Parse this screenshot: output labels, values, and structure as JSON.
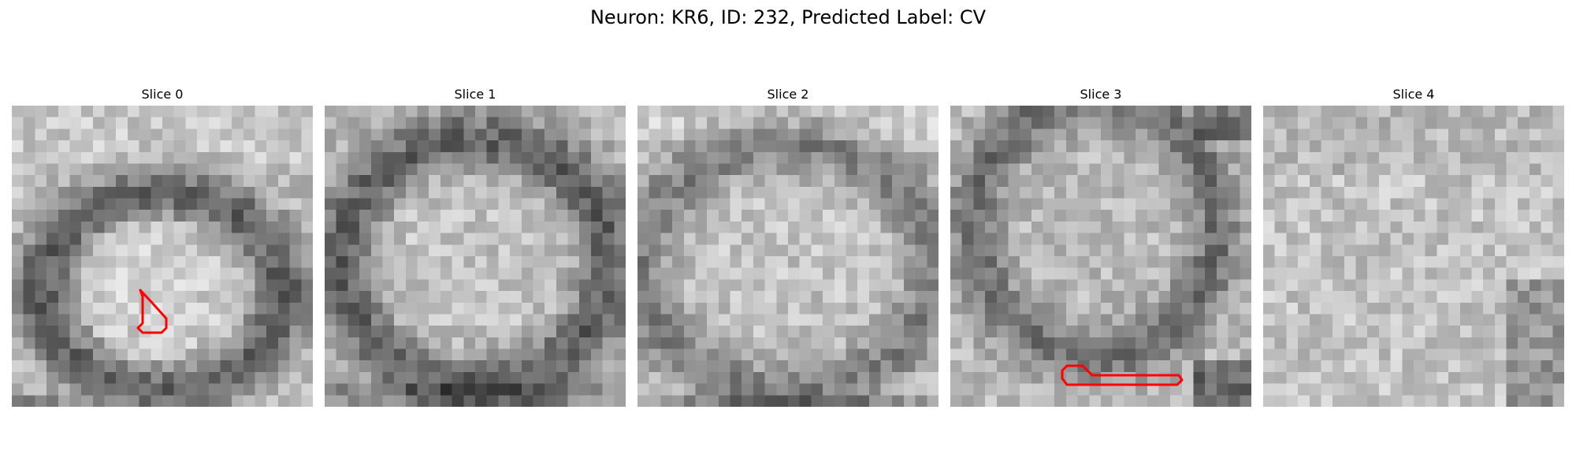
{
  "figure": {
    "title": "Neuron: KR6, ID: 232, Predicted Label: CV"
  },
  "slices": [
    {
      "label": "Slice 0",
      "has_outline": true
    },
    {
      "label": "Slice 1",
      "has_outline": false
    },
    {
      "label": "Slice 2",
      "has_outline": false
    },
    {
      "label": "Slice 3",
      "has_outline": true
    },
    {
      "label": "Slice 4",
      "has_outline": false
    }
  ],
  "colors": {
    "outline": "#ff0000",
    "background": "#ffffff"
  }
}
